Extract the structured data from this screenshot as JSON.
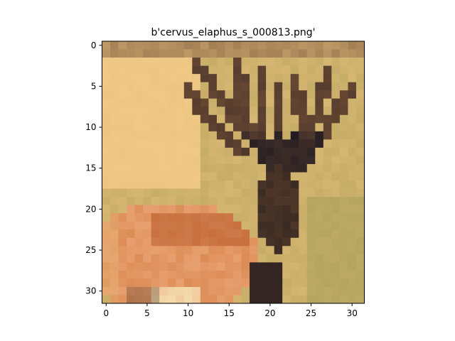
{
  "chart_data": {
    "type": "heatmap",
    "title": "b'cervus_elaphus_s_000813.png'",
    "xlabel": "",
    "ylabel": "",
    "xlim": [
      -0.5,
      31.5
    ],
    "ylim": [
      31.5,
      -0.5
    ],
    "x_ticks": [
      0,
      5,
      10,
      15,
      20,
      25,
      30
    ],
    "y_ticks": [
      0,
      5,
      10,
      15,
      20,
      25,
      30
    ],
    "x_tick_labels": [
      "0",
      "5",
      "10",
      "15",
      "20",
      "25",
      "30"
    ],
    "y_tick_labels": [
      "0",
      "5",
      "10",
      "15",
      "20",
      "25",
      "30"
    ],
    "image_size": [
      32,
      32
    ],
    "image_content": "low-resolution photo of a red deer (Cervus elaphus) with antlers against a tan grass background",
    "colors": {
      "grass_light": "#E9C27F",
      "grass_pale": "#F2CC88",
      "grass_olive": "#B7A45E",
      "grass_green": "#9E9A55",
      "antler_brown": "#6B4A33",
      "antler_dark": "#2C2224",
      "fur_orange": "#D9874F",
      "fur_red": "#B85A2A",
      "fur_light": "#E8A070",
      "shadow": "#3A2A22",
      "highlight": "#F4DDB0"
    }
  }
}
